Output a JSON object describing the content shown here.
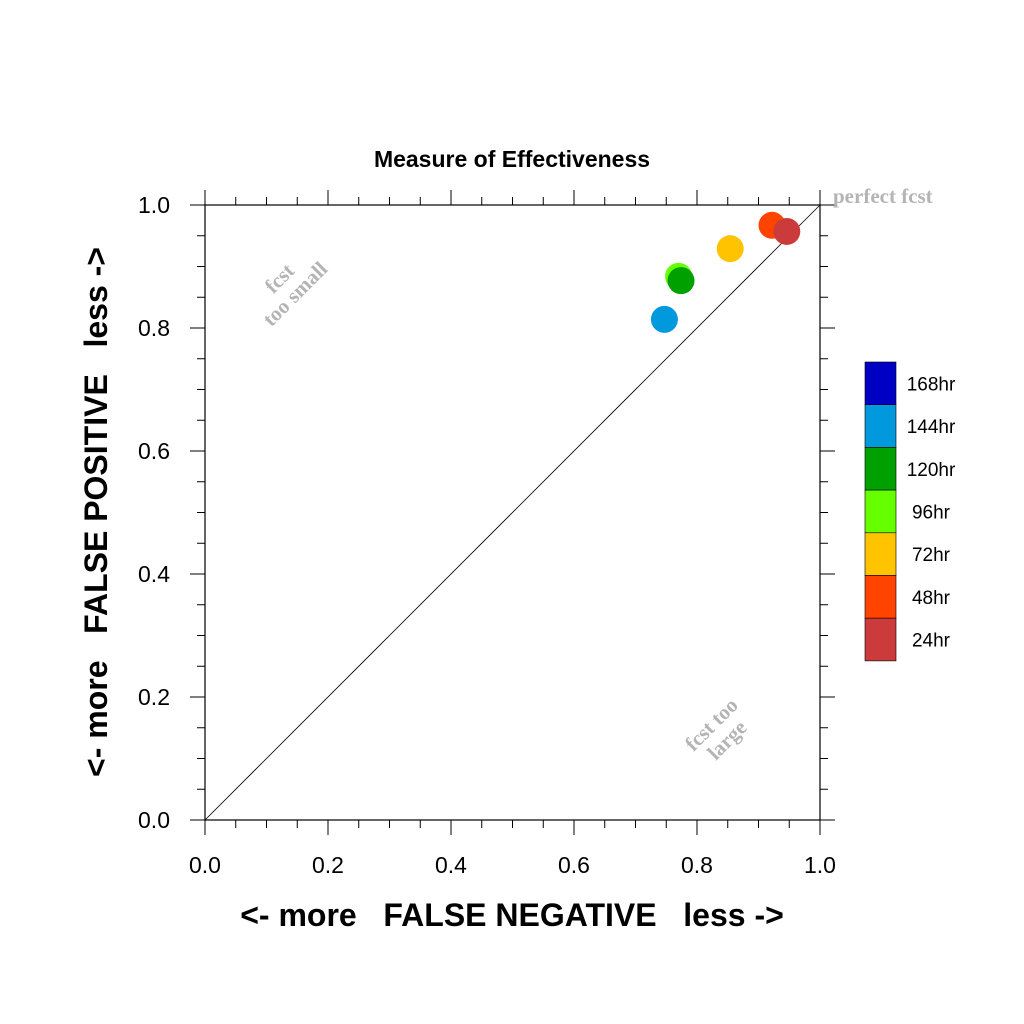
{
  "chart_data": {
    "type": "scatter",
    "title": "Measure of Effectiveness",
    "xlabel": "<- more   FALSE NEGATIVE   less ->",
    "ylabel": "<- more   FALSE POSITIVE   less ->",
    "xlim": [
      0,
      1
    ],
    "ylim": [
      0,
      1
    ],
    "x_ticks": [
      "0.0",
      "0.2",
      "0.4",
      "0.6",
      "0.8",
      "1.0"
    ],
    "y_ticks": [
      "0.0",
      "0.2",
      "0.4",
      "0.6",
      "0.8",
      "1.0"
    ],
    "grid": false,
    "diagonal_reference_line": true,
    "annotations": {
      "top_right": "perfect fcst",
      "upper_left_line1": "fcst",
      "upper_left_line2": "too small",
      "lower_right_line1": "fcst too",
      "lower_right_line2": "large"
    },
    "legend_position": "right",
    "legend": [
      {
        "label": "168hr",
        "color": "#0000c4"
      },
      {
        "label": "144hr",
        "color": "#0099dd"
      },
      {
        "label": "120hr",
        "color": "#00a000"
      },
      {
        "label": "96hr",
        "color": "#66ff00"
      },
      {
        "label": "72hr",
        "color": "#ffc300"
      },
      {
        "label": "48hr",
        "color": "#ff4400"
      },
      {
        "label": "24hr",
        "color": "#cc3b3b"
      }
    ],
    "series": [
      {
        "name": "144hr",
        "color": "#0099dd",
        "x": 0.747,
        "y": 0.814
      },
      {
        "name": "96hr",
        "color": "#66ff00",
        "x": 0.77,
        "y": 0.884
      },
      {
        "name": "120hr",
        "color": "#00a000",
        "x": 0.774,
        "y": 0.877
      },
      {
        "name": "72hr",
        "color": "#ffc300",
        "x": 0.854,
        "y": 0.929
      },
      {
        "name": "48hr",
        "color": "#ff4400",
        "x": 0.922,
        "y": 0.967
      },
      {
        "name": "24hr",
        "color": "#cc3b3b",
        "x": 0.946,
        "y": 0.957
      }
    ]
  }
}
